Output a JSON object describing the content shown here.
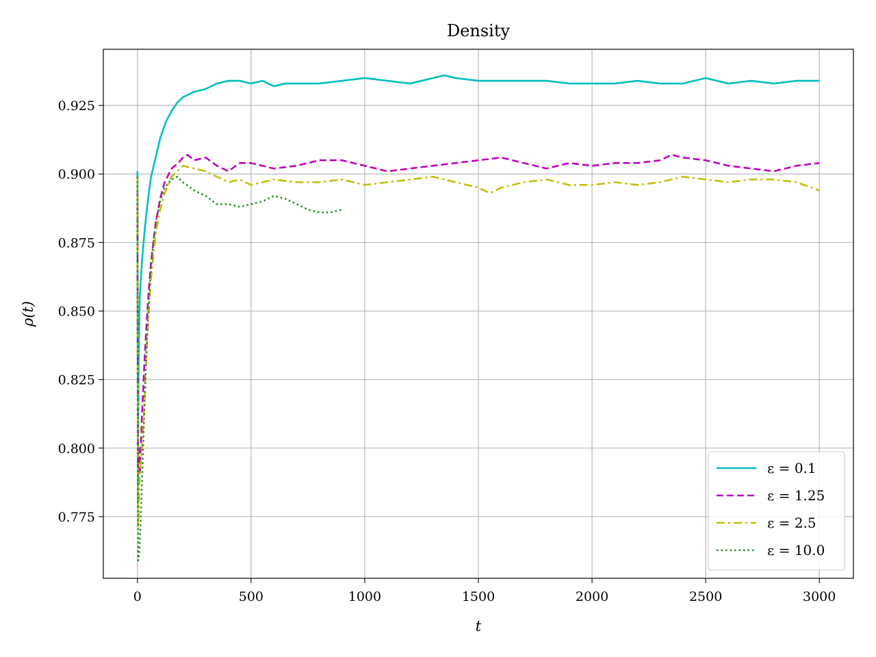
{
  "chart_data": {
    "type": "line",
    "title": "Density",
    "xlabel": "t",
    "ylabel": "ρ(t)",
    "xlim": [
      -150,
      3150
    ],
    "ylim": [
      0.7525,
      0.9455
    ],
    "grid": true,
    "legend_position": "lower-right",
    "x_ticks": [
      0,
      500,
      1000,
      1500,
      2000,
      2500,
      3000
    ],
    "x_tick_labels": [
      "0",
      "500",
      "1000",
      "1500",
      "2000",
      "2500",
      "3000"
    ],
    "y_ticks": [
      0.775,
      0.8,
      0.825,
      0.85,
      0.875,
      0.9,
      0.925
    ],
    "y_tick_labels": [
      "0.775",
      "0.800",
      "0.825",
      "0.850",
      "0.875",
      "0.900",
      "0.925"
    ],
    "series": [
      {
        "name": "ε = 0.1",
        "color": "#00bfbf",
        "dash": "solid",
        "x": [
          0,
          2,
          5,
          10,
          20,
          30,
          40,
          50,
          60,
          80,
          100,
          125,
          150,
          175,
          200,
          250,
          300,
          350,
          400,
          450,
          500,
          550,
          600,
          650,
          700,
          800,
          900,
          1000,
          1100,
          1200,
          1300,
          1350,
          1400,
          1500,
          1600,
          1700,
          1800,
          1900,
          2000,
          2100,
          2200,
          2300,
          2400,
          2500,
          2600,
          2700,
          2800,
          2900,
          3000
        ],
        "y": [
          0.901,
          0.78,
          0.83,
          0.855,
          0.868,
          0.878,
          0.886,
          0.893,
          0.899,
          0.906,
          0.913,
          0.919,
          0.923,
          0.926,
          0.928,
          0.93,
          0.931,
          0.933,
          0.934,
          0.934,
          0.933,
          0.934,
          0.932,
          0.933,
          0.933,
          0.933,
          0.934,
          0.935,
          0.934,
          0.933,
          0.935,
          0.936,
          0.935,
          0.934,
          0.934,
          0.934,
          0.934,
          0.933,
          0.933,
          0.933,
          0.934,
          0.933,
          0.933,
          0.935,
          0.933,
          0.934,
          0.933,
          0.934,
          0.934
        ]
      },
      {
        "name": "ε = 1.25",
        "color": "#bf00bf",
        "dash": "dashed",
        "x": [
          0,
          2,
          5,
          10,
          20,
          30,
          40,
          50,
          60,
          80,
          100,
          120,
          150,
          180,
          200,
          220,
          250,
          300,
          350,
          400,
          450,
          500,
          600,
          700,
          800,
          900,
          1000,
          1100,
          1200,
          1300,
          1400,
          1500,
          1600,
          1700,
          1800,
          1900,
          2000,
          2100,
          2200,
          2300,
          2350,
          2400,
          2500,
          2600,
          2700,
          2800,
          2900,
          3000
        ],
        "y": [
          0.893,
          0.79,
          0.8,
          0.79,
          0.812,
          0.83,
          0.845,
          0.858,
          0.868,
          0.882,
          0.891,
          0.897,
          0.902,
          0.904,
          0.906,
          0.907,
          0.905,
          0.906,
          0.903,
          0.901,
          0.904,
          0.904,
          0.902,
          0.903,
          0.905,
          0.905,
          0.903,
          0.901,
          0.902,
          0.903,
          0.904,
          0.905,
          0.906,
          0.904,
          0.902,
          0.904,
          0.903,
          0.904,
          0.904,
          0.905,
          0.907,
          0.906,
          0.905,
          0.903,
          0.902,
          0.901,
          0.903,
          0.904
        ]
      },
      {
        "name": "ε = 2.5",
        "color": "#bfbf00",
        "dash": "dashdot",
        "x": [
          0,
          2,
          5,
          10,
          20,
          30,
          40,
          50,
          60,
          80,
          100,
          120,
          150,
          175,
          200,
          250,
          300,
          350,
          400,
          450,
          500,
          600,
          700,
          800,
          900,
          1000,
          1100,
          1200,
          1300,
          1400,
          1500,
          1550,
          1600,
          1700,
          1800,
          1900,
          2000,
          2100,
          2200,
          2300,
          2400,
          2500,
          2600,
          2700,
          2800,
          2900,
          3000
        ],
        "y": [
          0.899,
          0.771,
          0.775,
          0.79,
          0.8,
          0.815,
          0.835,
          0.85,
          0.862,
          0.878,
          0.887,
          0.893,
          0.899,
          0.901,
          0.903,
          0.902,
          0.901,
          0.899,
          0.897,
          0.898,
          0.896,
          0.898,
          0.897,
          0.897,
          0.898,
          0.896,
          0.897,
          0.898,
          0.899,
          0.897,
          0.895,
          0.893,
          0.895,
          0.897,
          0.898,
          0.896,
          0.896,
          0.897,
          0.896,
          0.897,
          0.899,
          0.898,
          0.897,
          0.898,
          0.898,
          0.897,
          0.894
        ]
      },
      {
        "name": "ε = 10.0",
        "color": "#228b22",
        "dash": "dotted",
        "x": [
          0,
          3,
          8,
          15,
          25,
          35,
          45,
          55,
          65,
          80,
          100,
          120,
          150,
          175,
          200,
          250,
          300,
          350,
          400,
          450,
          500,
          550,
          600,
          650,
          700,
          750,
          800,
          850,
          900
        ],
        "y": [
          0.899,
          0.759,
          0.762,
          0.775,
          0.8,
          0.825,
          0.845,
          0.86,
          0.871,
          0.882,
          0.89,
          0.895,
          0.898,
          0.899,
          0.897,
          0.894,
          0.892,
          0.889,
          0.889,
          0.888,
          0.889,
          0.89,
          0.892,
          0.891,
          0.889,
          0.887,
          0.886,
          0.886,
          0.887
        ]
      }
    ]
  }
}
